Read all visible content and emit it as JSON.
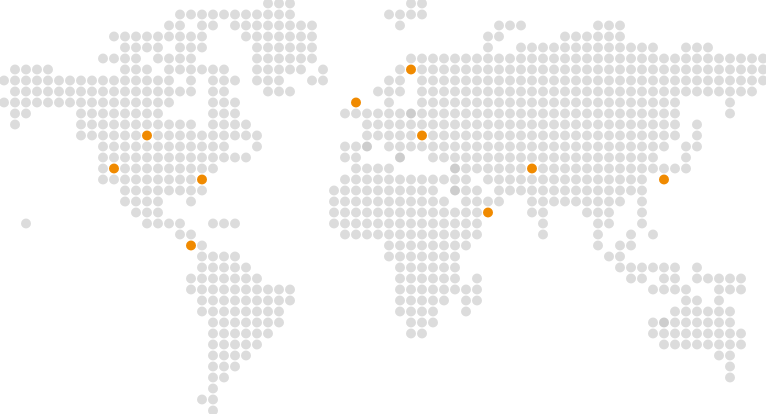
{
  "map": {
    "dot_color": "#dcdcdc",
    "shaded_dot_color": "#cdcdcd",
    "marker_color": "#f08a00",
    "background_color": "#ffffff"
  }
}
